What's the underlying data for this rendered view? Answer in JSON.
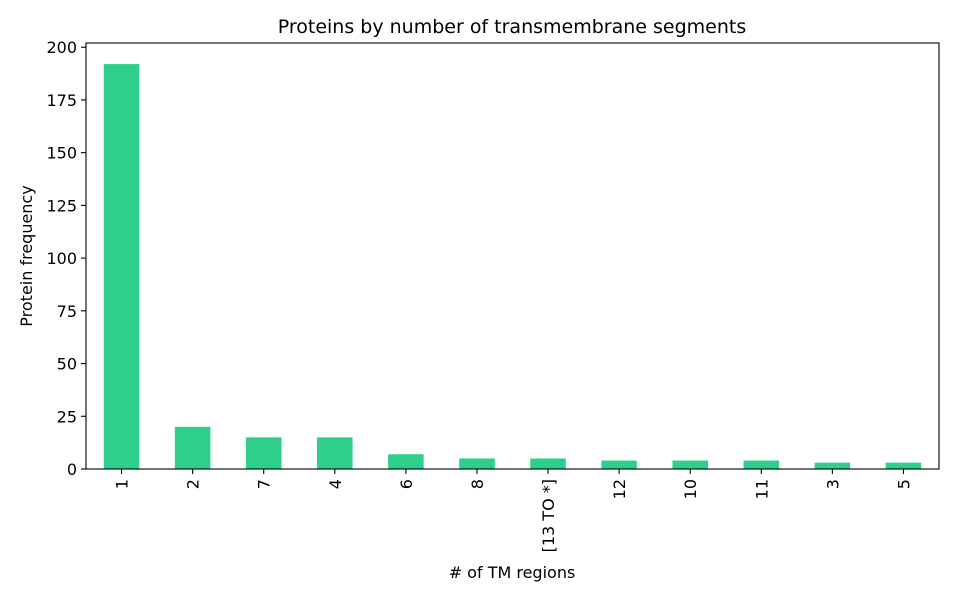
{
  "chart_data": {
    "type": "bar",
    "title": "Proteins by number of transmembrane segments",
    "xlabel": "# of TM regions",
    "ylabel": "Protein frequency",
    "categories": [
      "1",
      "2",
      "7",
      "4",
      "6",
      "8",
      "[13 TO *]",
      "12",
      "10",
      "11",
      "3",
      "5"
    ],
    "values": [
      192,
      20,
      15,
      15,
      7,
      5,
      5,
      4,
      4,
      4,
      3,
      3
    ],
    "ylim": [
      0,
      202
    ],
    "yticks": [
      0,
      25,
      50,
      75,
      100,
      125,
      150,
      175,
      200
    ],
    "bar_color": "#2ecf8a",
    "grid": false,
    "legend": "none"
  }
}
